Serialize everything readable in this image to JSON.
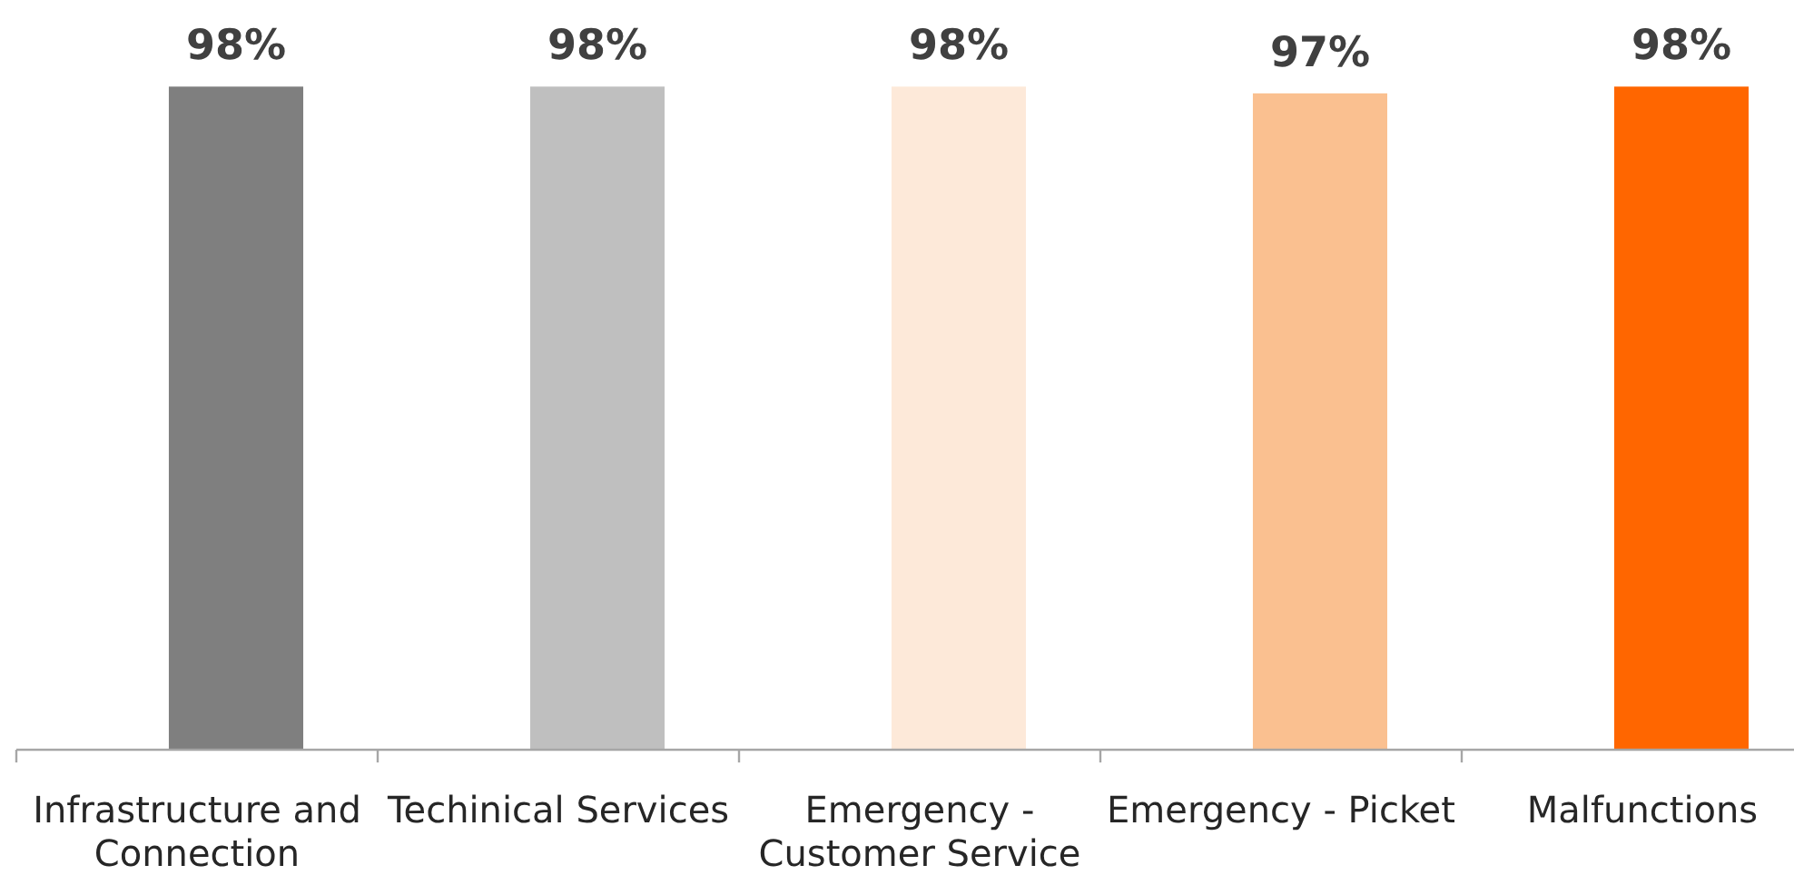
{
  "chart_data": {
    "type": "bar",
    "categories": [
      "Infrastructure and Connection",
      "Techinical Services",
      "Emergency - Customer Service",
      "Emergency - Picket",
      "Malfunctions"
    ],
    "values": [
      98,
      98,
      98,
      97,
      98
    ],
    "colors": [
      "#7f7f7f",
      "#bfbfbf",
      "#fde9d9",
      "#fac090",
      "#ff6600"
    ],
    "value_labels": [
      "98%",
      "98%",
      "98%",
      "97%",
      "98%"
    ],
    "tick_labels": "x"
  }
}
